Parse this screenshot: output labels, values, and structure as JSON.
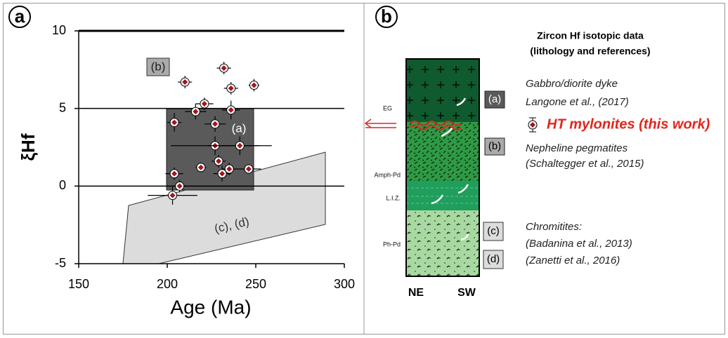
{
  "chart_data": {
    "type": "scatter",
    "xlabel": "Age (Ma)",
    "ylabel": "ξHf",
    "panel_label": "a",
    "xlim": [
      150,
      300
    ],
    "ylim": [
      -5,
      10
    ],
    "xticks": [
      150,
      200,
      250,
      300
    ],
    "yticks": [
      -5,
      0,
      5,
      10
    ],
    "grid": true,
    "annotations": [
      "(a)",
      "(b)",
      "(c), (d)"
    ],
    "series": [
      {
        "name": "HT mylonites (this work)",
        "color": "#a3151b",
        "x": [
          232,
          210,
          249,
          236,
          221,
          216,
          236,
          204,
          227,
          227,
          241,
          229,
          219,
          246,
          235,
          231,
          204,
          207,
          203
        ],
        "y": [
          7.6,
          6.7,
          6.5,
          6.3,
          5.3,
          4.8,
          4.9,
          4.1,
          4.0,
          2.6,
          2.6,
          1.6,
          1.2,
          1.1,
          1.1,
          0.8,
          0.8,
          0.0,
          -0.6
        ],
        "xerr": [
          4,
          4,
          3,
          4,
          5,
          6,
          5,
          4,
          6,
          25,
          18,
          4,
          3,
          7,
          4,
          5,
          5,
          4,
          14
        ],
        "yerr": [
          0.4,
          0.4,
          0.4,
          0.4,
          0.4,
          0.5,
          0.6,
          0.6,
          0.5,
          0.6,
          0.6,
          0.4,
          0.3,
          0.3,
          0.4,
          0.5,
          0.4,
          0.4,
          0.6
        ]
      }
    ]
  },
  "diagram": {
    "panel_label": "b",
    "title": [
      "Zircon Hf isotopic data",
      "(lithology and references)"
    ],
    "units": [
      "EG",
      "Amph-Pd",
      "L.I.Z.",
      "Ph-Pd"
    ],
    "sides": [
      "NE",
      "SW"
    ],
    "boxes": [
      "(a)",
      "(b)",
      "(c)",
      "(d)"
    ],
    "refs": [
      "Gabbro/diorite dyke",
      "Langone et al., (2017)",
      "Nepheline pegmatites",
      "(Schaltegger et al., 2015)",
      "Chromitites:",
      "(Badanina et al., 2013)",
      "(Zanetti et al., 2016)"
    ]
  }
}
